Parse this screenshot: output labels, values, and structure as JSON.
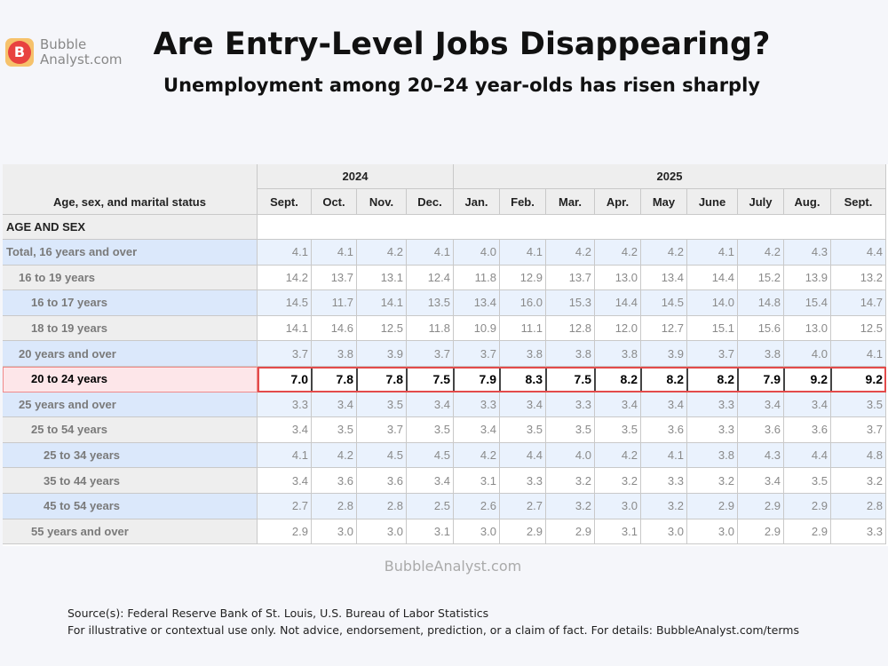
{
  "header": {
    "logo_letter": "B",
    "logo_lines": [
      "Bubble",
      "Analyst.com"
    ],
    "title": "Are Entry-Level Jobs Disappearing?",
    "subtitle": "Unemployment among 20–24 year-olds has risen sharply"
  },
  "table": {
    "corner": "Age, sex, and marital status",
    "years": [
      {
        "year": "2024",
        "months": [
          "Sept.",
          "Oct.",
          "Nov.",
          "Dec."
        ]
      },
      {
        "year": "2025",
        "months": [
          "Jan.",
          "Feb.",
          "Mar.",
          "Apr.",
          "May",
          "June",
          "July",
          "Aug.",
          "Sept."
        ]
      }
    ],
    "section": "AGE AND SEX",
    "rows": [
      {
        "label": "Total, 16 years and over",
        "values": [
          "4.1",
          "4.1",
          "4.2",
          "4.1",
          "4.0",
          "4.1",
          "4.2",
          "4.2",
          "4.2",
          "4.1",
          "4.2",
          "4.3",
          "4.4"
        ]
      },
      {
        "label": "16 to 19 years",
        "values": [
          "14.2",
          "13.7",
          "13.1",
          "12.4",
          "11.8",
          "12.9",
          "13.7",
          "13.0",
          "13.4",
          "14.4",
          "15.2",
          "13.9",
          "13.2"
        ]
      },
      {
        "label": "16 to 17 years",
        "values": [
          "14.5",
          "11.7",
          "14.1",
          "13.5",
          "13.4",
          "16.0",
          "15.3",
          "14.4",
          "14.5",
          "14.0",
          "14.8",
          "15.4",
          "14.7"
        ]
      },
      {
        "label": "18 to 19 years",
        "values": [
          "14.1",
          "14.6",
          "12.5",
          "11.8",
          "10.9",
          "11.1",
          "12.8",
          "12.0",
          "12.7",
          "15.1",
          "15.6",
          "13.0",
          "12.5"
        ]
      },
      {
        "label": "20 years and over",
        "values": [
          "3.7",
          "3.8",
          "3.9",
          "3.7",
          "3.7",
          "3.8",
          "3.8",
          "3.8",
          "3.9",
          "3.7",
          "3.8",
          "4.0",
          "4.1"
        ]
      },
      {
        "label": "20 to 24 years",
        "values": [
          "7.0",
          "7.8",
          "7.8",
          "7.5",
          "7.9",
          "8.3",
          "7.5",
          "8.2",
          "8.2",
          "8.2",
          "7.9",
          "9.2",
          "9.2"
        ]
      },
      {
        "label": "25 years and over",
        "values": [
          "3.3",
          "3.4",
          "3.5",
          "3.4",
          "3.3",
          "3.4",
          "3.3",
          "3.4",
          "3.4",
          "3.3",
          "3.4",
          "3.4",
          "3.5"
        ]
      },
      {
        "label": "25 to 54 years",
        "values": [
          "3.4",
          "3.5",
          "3.7",
          "3.5",
          "3.4",
          "3.5",
          "3.5",
          "3.5",
          "3.6",
          "3.3",
          "3.6",
          "3.6",
          "3.7"
        ]
      },
      {
        "label": "25 to 34 years",
        "values": [
          "4.1",
          "4.2",
          "4.5",
          "4.5",
          "4.2",
          "4.4",
          "4.0",
          "4.2",
          "4.1",
          "3.8",
          "4.3",
          "4.4",
          "4.8"
        ]
      },
      {
        "label": "35 to 44 years",
        "values": [
          "3.4",
          "3.6",
          "3.6",
          "3.4",
          "3.1",
          "3.3",
          "3.2",
          "3.2",
          "3.3",
          "3.2",
          "3.4",
          "3.5",
          "3.2"
        ]
      },
      {
        "label": "45 to 54 years",
        "values": [
          "2.7",
          "2.8",
          "2.8",
          "2.5",
          "2.6",
          "2.7",
          "3.2",
          "3.0",
          "3.2",
          "2.9",
          "2.9",
          "2.9",
          "2.8"
        ]
      },
      {
        "label": "55 years and over",
        "values": [
          "2.9",
          "3.0",
          "3.0",
          "3.1",
          "3.0",
          "2.9",
          "2.9",
          "3.1",
          "3.0",
          "3.0",
          "2.9",
          "2.9",
          "3.3"
        ]
      }
    ]
  },
  "footer": {
    "watermark": "BubbleAnalyst.com",
    "sources": [
      "Source(s): Federal Reserve Bank of St. Louis, U.S. Bureau of Labor Statistics",
      "For illustrative or contextual use only. Not advice, endorsement, prediction, or a claim of fact. For details: BubbleAnalyst.com/terms"
    ]
  }
}
